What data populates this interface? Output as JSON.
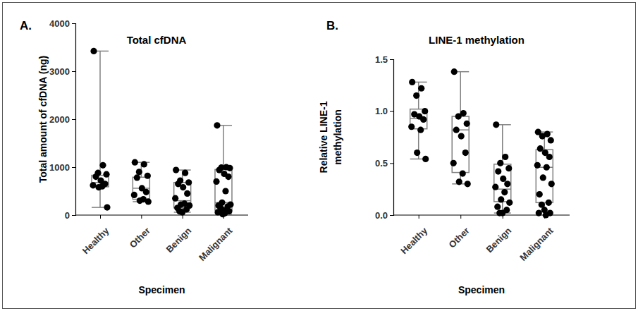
{
  "chart_data": [
    {
      "type": "box",
      "panel_label": "A.",
      "title": "Total cfDNA",
      "x_label": "Specimen",
      "y_label": [
        "Total amount of cfDNA (ng)"
      ],
      "categories": [
        "Healthy",
        "Other",
        "Benign",
        "Malignant"
      ],
      "ylim": [
        0,
        4000
      ],
      "yticks": [
        0,
        1000,
        2000,
        3000,
        4000
      ],
      "color": "#808080",
      "marker": "circle",
      "boxes": [
        {
          "min": 160,
          "q1": 590,
          "median": 680,
          "q3": 830,
          "max": 3420
        },
        {
          "min": 280,
          "q1": 330,
          "median": 560,
          "q3": 790,
          "max": 1100
        },
        {
          "min": 60,
          "q1": 150,
          "median": 300,
          "q3": 680,
          "max": 940
        },
        {
          "min": 20,
          "q1": 100,
          "median": 260,
          "q3": 950,
          "max": 1870
        }
      ],
      "points": [
        [
          3420,
          1040,
          880,
          850,
          800,
          720,
          650,
          620,
          600,
          580,
          160
        ],
        [
          1100,
          1060,
          900,
          820,
          780,
          560,
          480,
          420,
          330,
          300,
          280
        ],
        [
          940,
          880,
          720,
          680,
          650,
          580,
          450,
          350,
          240,
          220,
          200,
          150,
          120,
          80,
          60
        ],
        [
          1870,
          1000,
          990,
          980,
          940,
          860,
          800,
          700,
          500,
          260,
          220,
          200,
          180,
          150,
          100,
          80,
          60,
          40,
          20
        ]
      ]
    },
    {
      "type": "box",
      "panel_label": "B.",
      "title": "LINE-1 methylation",
      "x_label": "Specimen",
      "y_label": [
        "Relative LINE-1",
        "methylation"
      ],
      "categories": [
        "Healthy",
        "Other",
        "Benign",
        "Malignant"
      ],
      "ylim": [
        0,
        1.5
      ],
      "yticks": [
        {
          "value": 0,
          "label": "0.0"
        },
        0.5,
        {
          "value": 1,
          "label": "1.0"
        },
        1.5
      ],
      "color": "#808080",
      "marker": "circle",
      "boxes": [
        {
          "min": 0.54,
          "q1": 0.83,
          "median": 0.93,
          "q3": 1.02,
          "max": 1.28
        },
        {
          "min": 0.3,
          "q1": 0.41,
          "median": 0.82,
          "q3": 0.95,
          "max": 1.38
        },
        {
          "min": 0.02,
          "q1": 0.13,
          "median": 0.25,
          "q3": 0.49,
          "max": 0.87
        },
        {
          "min": 0,
          "q1": 0.12,
          "median": 0.46,
          "q3": 0.63,
          "max": 0.8
        }
      ],
      "points": [
        [
          1.28,
          1.22,
          1.15,
          1.0,
          0.97,
          0.95,
          0.92,
          0.85,
          0.82,
          0.6,
          0.54
        ],
        [
          1.38,
          0.98,
          0.95,
          0.88,
          0.82,
          0.76,
          0.6,
          0.5,
          0.4,
          0.32,
          0.3
        ],
        [
          0.87,
          0.56,
          0.5,
          0.45,
          0.42,
          0.35,
          0.3,
          0.27,
          0.22,
          0.15,
          0.12,
          0.08,
          0.05,
          0.02,
          0.02
        ],
        [
          0.8,
          0.78,
          0.76,
          0.72,
          0.64,
          0.6,
          0.56,
          0.48,
          0.46,
          0.36,
          0.3,
          0.2,
          0.12,
          0.1,
          0.05,
          0.02,
          0.02,
          0
        ]
      ]
    }
  ]
}
